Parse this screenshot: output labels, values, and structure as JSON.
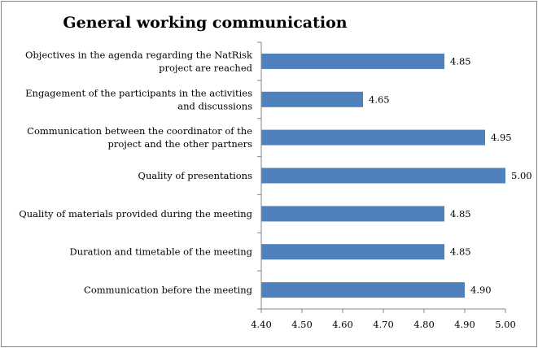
{
  "chart_data": {
    "type": "bar",
    "orientation": "horizontal",
    "title": "General working communication",
    "categories": [
      [
        "Objectives in the agenda regarding the NatRisk",
        "project are reached"
      ],
      [
        "Engagement of the participants in the activities",
        "and discussions"
      ],
      [
        "Communication between the coordinator of the",
        "project and the other partners"
      ],
      [
        "Quality of presentations"
      ],
      [
        "Quality of materials provided during the meeting"
      ],
      [
        "Duration and timetable of the meeting"
      ],
      [
        "Communication before the meeting"
      ]
    ],
    "values": [
      4.85,
      4.65,
      4.95,
      5.0,
      4.85,
      4.85,
      4.9
    ],
    "value_labels": [
      "4.85",
      "4.65",
      "4.95",
      "5.00",
      "4.85",
      "4.85",
      "4.90"
    ],
    "xlim": [
      4.4,
      5.0
    ],
    "xticks": [
      4.4,
      4.5,
      4.6,
      4.7,
      4.8,
      4.9,
      5.0
    ],
    "xtick_labels": [
      "4.40",
      "4.50",
      "4.60",
      "4.70",
      "4.80",
      "4.90",
      "5.00"
    ],
    "grid": false,
    "legend": "none",
    "bar_color": "#4f81bd",
    "border_color": "#868686"
  }
}
